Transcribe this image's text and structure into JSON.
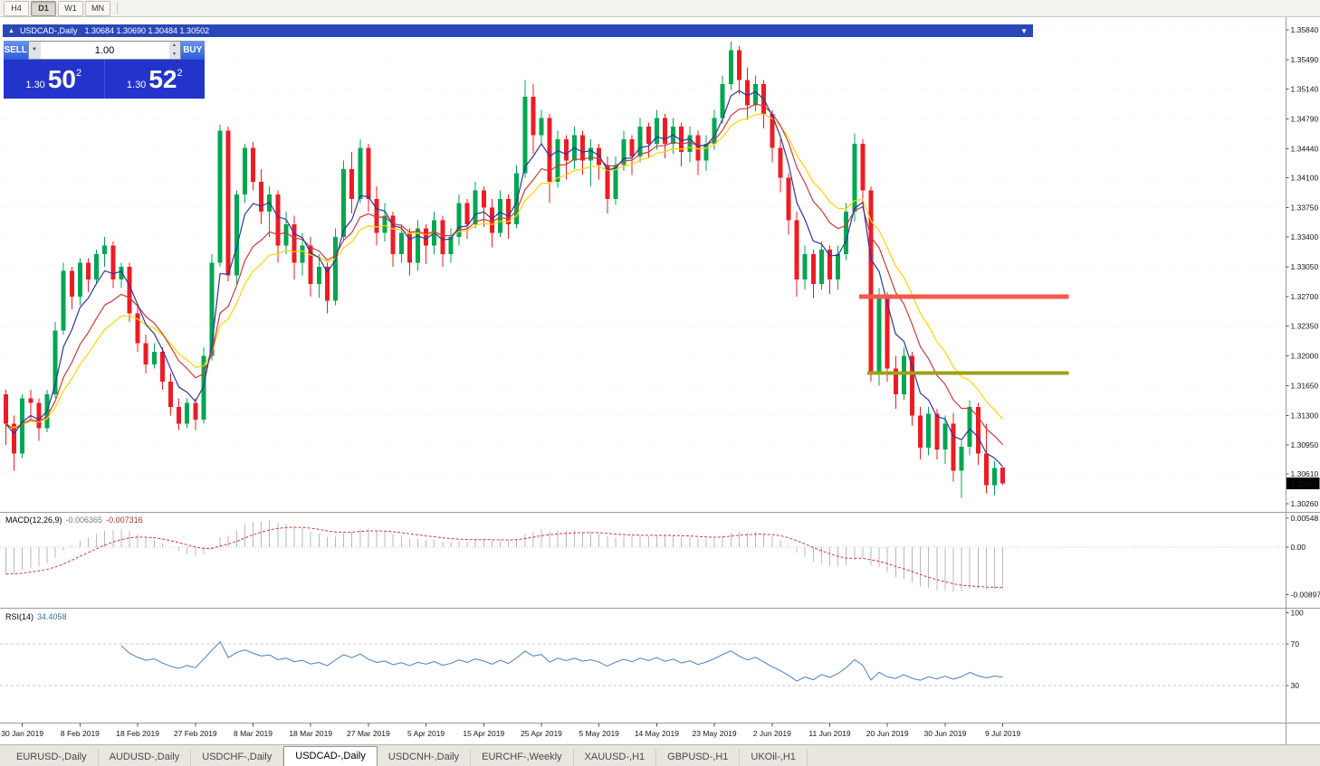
{
  "toolbar": {
    "timeframes": [
      {
        "label": "H4",
        "active": false
      },
      {
        "label": "D1",
        "active": true
      },
      {
        "label": "W1",
        "active": false
      },
      {
        "label": "MN",
        "active": false
      }
    ]
  },
  "chart_header": {
    "collapse_icon": "▲",
    "symbol": "USDCAD-,Daily",
    "ohlc": "1.30684 1.30690 1.30484 1.30502",
    "menu_icon": "▼"
  },
  "trade_widget": {
    "sell_label": "SELL",
    "buy_label": "BUY",
    "volume": "1.00",
    "dropdown_icon": "▼",
    "spin_up_icon": "▲",
    "spin_down_icon": "▼",
    "sell_price": {
      "small": "1.30",
      "big": "50",
      "sup": "2"
    },
    "buy_price": {
      "small": "1.30",
      "big": "52",
      "sup": "2"
    }
  },
  "indicators": {
    "macd": {
      "name": "MACD(12,26,9)",
      "value_main": "-0.006365",
      "value_signal": "-0.007316",
      "scale": {
        "top": "0.00548",
        "zero": "0.00",
        "bottom": "-0.00897"
      }
    },
    "rsi": {
      "name": "RSI(14)",
      "value": "34.4058",
      "scale": [
        "100",
        "70",
        "30"
      ]
    }
  },
  "price_scale": {
    "ticks": [
      "1.35840",
      "1.35490",
      "1.35140",
      "1.34790",
      "1.34440",
      "1.34100",
      "1.33750",
      "1.33400",
      "1.33050",
      "1.32700",
      "1.32350",
      "1.32000",
      "1.31650",
      "1.31300",
      "1.30950",
      "1.30610",
      "1.30260"
    ],
    "current": "1.30502"
  },
  "time_axis": [
    "30 Jan 2019",
    "8 Feb 2019",
    "18 Feb 2019",
    "27 Feb 2019",
    "8 Mar 2019",
    "18 Mar 2019",
    "27 Mar 2019",
    "5 Apr 2019",
    "15 Apr 2019",
    "25 Apr 2019",
    "5 May 2019",
    "14 May 2019",
    "23 May 2019",
    "2 Jun 2019",
    "11 Jun 2019",
    "20 Jun 2019",
    "30 Jun 2019",
    "9 Jul 2019"
  ],
  "tabs": [
    {
      "label": "EURUSD-,Daily",
      "active": false
    },
    {
      "label": "AUDUSD-,Daily",
      "active": false
    },
    {
      "label": "USDCHF-,Daily",
      "active": false
    },
    {
      "label": "USDCAD-,Daily",
      "active": true
    },
    {
      "label": "USDCNH-,Daily",
      "active": false
    },
    {
      "label": "EURCHF-,Weekly",
      "active": false
    },
    {
      "label": "XAUUSD-,H1",
      "active": false
    },
    {
      "label": "GBPUSD-,H1",
      "active": false
    },
    {
      "label": "UKOil-,H1",
      "active": false
    }
  ],
  "chart_data": {
    "type": "candlestick",
    "title": "USDCAD-,Daily",
    "symbol": "USDCAD",
    "timeframe": "Daily",
    "price_range": {
      "top": 1.3584,
      "bottom": 1.3026
    },
    "x_axis": {
      "first_label_index": 2,
      "label_step": 7
    },
    "colors": {
      "up": "#00A651",
      "down": "#ED1C24",
      "up_border": "#00814000",
      "down_border": "#c0101500"
    },
    "candles": [
      [
        1.3155,
        1.316,
        1.3095,
        1.312
      ],
      [
        1.312,
        1.313,
        1.3065,
        1.3085
      ],
      [
        1.3085,
        1.3155,
        1.308,
        1.315
      ],
      [
        1.315,
        1.316,
        1.3125,
        1.3145
      ],
      [
        1.3145,
        1.315,
        1.31,
        1.3115
      ],
      [
        1.3115,
        1.316,
        1.311,
        1.3155
      ],
      [
        1.3155,
        1.324,
        1.315,
        1.323
      ],
      [
        1.323,
        1.331,
        1.3225,
        1.33
      ],
      [
        1.33,
        1.3305,
        1.3255,
        1.327
      ],
      [
        1.327,
        1.3315,
        1.326,
        1.331
      ],
      [
        1.331,
        1.3315,
        1.3275,
        1.329
      ],
      [
        1.329,
        1.3325,
        1.3285,
        1.332
      ],
      [
        1.332,
        1.334,
        1.3305,
        1.333
      ],
      [
        1.333,
        1.3335,
        1.328,
        1.329
      ],
      [
        1.329,
        1.331,
        1.328,
        1.3305
      ],
      [
        1.3305,
        1.331,
        1.324,
        1.325
      ],
      [
        1.325,
        1.326,
        1.3205,
        1.3215
      ],
      [
        1.3215,
        1.3225,
        1.318,
        1.319
      ],
      [
        1.319,
        1.3215,
        1.3185,
        1.3205
      ],
      [
        1.3205,
        1.321,
        1.316,
        1.317
      ],
      [
        1.317,
        1.318,
        1.313,
        1.314
      ],
      [
        1.314,
        1.315,
        1.3113,
        1.312
      ],
      [
        1.312,
        1.315,
        1.3115,
        1.3145
      ],
      [
        1.3145,
        1.315,
        1.3113,
        1.3125
      ],
      [
        1.3125,
        1.321,
        1.312,
        1.32
      ],
      [
        1.32,
        1.332,
        1.3195,
        1.331
      ],
      [
        1.331,
        1.3472,
        1.3305,
        1.3465
      ],
      [
        1.3465,
        1.347,
        1.3288,
        1.3295
      ],
      [
        1.3295,
        1.3395,
        1.3285,
        1.339
      ],
      [
        1.339,
        1.345,
        1.338,
        1.3445
      ],
      [
        1.3445,
        1.3452,
        1.3395,
        1.3405
      ],
      [
        1.3405,
        1.342,
        1.3355,
        1.337
      ],
      [
        1.337,
        1.34,
        1.334,
        1.339
      ],
      [
        1.339,
        1.3395,
        1.331,
        1.333
      ],
      [
        1.333,
        1.337,
        1.332,
        1.3355
      ],
      [
        1.3355,
        1.3365,
        1.329,
        1.331
      ],
      [
        1.331,
        1.3345,
        1.3295,
        1.333
      ],
      [
        1.333,
        1.334,
        1.327,
        1.3285
      ],
      [
        1.3285,
        1.332,
        1.3268,
        1.3305
      ],
      [
        1.3305,
        1.331,
        1.325,
        1.3265
      ],
      [
        1.3265,
        1.335,
        1.326,
        1.334
      ],
      [
        1.334,
        1.343,
        1.3335,
        1.342
      ],
      [
        1.342,
        1.344,
        1.3368,
        1.3385
      ],
      [
        1.3385,
        1.3455,
        1.338,
        1.3445
      ],
      [
        1.3445,
        1.345,
        1.337,
        1.3385
      ],
      [
        1.3385,
        1.34,
        1.333,
        1.3345
      ],
      [
        1.3345,
        1.338,
        1.3335,
        1.3365
      ],
      [
        1.3365,
        1.337,
        1.3305,
        1.332
      ],
      [
        1.332,
        1.3355,
        1.331,
        1.3345
      ],
      [
        1.3345,
        1.335,
        1.3295,
        1.331
      ],
      [
        1.331,
        1.336,
        1.33,
        1.335
      ],
      [
        1.335,
        1.3355,
        1.3308,
        1.333
      ],
      [
        1.333,
        1.337,
        1.332,
        1.336
      ],
      [
        1.336,
        1.3365,
        1.3305,
        1.332
      ],
      [
        1.332,
        1.335,
        1.331,
        1.334
      ],
      [
        1.334,
        1.339,
        1.333,
        1.338
      ],
      [
        1.338,
        1.3385,
        1.3338,
        1.3355
      ],
      [
        1.3355,
        1.3405,
        1.335,
        1.3395
      ],
      [
        1.3395,
        1.34,
        1.3352,
        1.3375
      ],
      [
        1.3375,
        1.3385,
        1.3328,
        1.3345
      ],
      [
        1.3345,
        1.3395,
        1.334,
        1.3385
      ],
      [
        1.3385,
        1.339,
        1.3338,
        1.3355
      ],
      [
        1.3355,
        1.3425,
        1.335,
        1.3415
      ],
      [
        1.3415,
        1.3525,
        1.341,
        1.3505
      ],
      [
        1.3505,
        1.352,
        1.3438,
        1.346
      ],
      [
        1.346,
        1.349,
        1.3448,
        1.348
      ],
      [
        1.348,
        1.3485,
        1.338,
        1.3405
      ],
      [
        1.3405,
        1.3465,
        1.3398,
        1.3455
      ],
      [
        1.3455,
        1.346,
        1.3408,
        1.343
      ],
      [
        1.343,
        1.347,
        1.342,
        1.346
      ],
      [
        1.346,
        1.3465,
        1.3413,
        1.343
      ],
      [
        1.343,
        1.3455,
        1.34,
        1.3445
      ],
      [
        1.3445,
        1.345,
        1.3408,
        1.3425
      ],
      [
        1.3425,
        1.3435,
        1.3368,
        1.3385
      ],
      [
        1.3385,
        1.3435,
        1.3378,
        1.3425
      ],
      [
        1.3425,
        1.3465,
        1.3418,
        1.3455
      ],
      [
        1.3455,
        1.346,
        1.3413,
        1.3435
      ],
      [
        1.3435,
        1.348,
        1.3428,
        1.347
      ],
      [
        1.347,
        1.3475,
        1.3433,
        1.345
      ],
      [
        1.345,
        1.349,
        1.3443,
        1.348
      ],
      [
        1.348,
        1.3485,
        1.3433,
        1.345
      ],
      [
        1.345,
        1.348,
        1.3438,
        1.347
      ],
      [
        1.347,
        1.3475,
        1.3423,
        1.344
      ],
      [
        1.344,
        1.347,
        1.3428,
        1.346
      ],
      [
        1.346,
        1.3465,
        1.3413,
        1.343
      ],
      [
        1.343,
        1.346,
        1.3418,
        1.345
      ],
      [
        1.345,
        1.349,
        1.3443,
        1.348
      ],
      [
        1.348,
        1.353,
        1.3473,
        1.352
      ],
      [
        1.352,
        1.357,
        1.3513,
        1.356
      ],
      [
        1.356,
        1.3565,
        1.3508,
        1.3525
      ],
      [
        1.3525,
        1.354,
        1.3478,
        1.3495
      ],
      [
        1.3495,
        1.353,
        1.3488,
        1.352
      ],
      [
        1.352,
        1.3525,
        1.3468,
        1.3485
      ],
      [
        1.3485,
        1.349,
        1.3428,
        1.3445
      ],
      [
        1.3445,
        1.3455,
        1.3393,
        1.341
      ],
      [
        1.341,
        1.3415,
        1.3343,
        1.336
      ],
      [
        1.336,
        1.337,
        1.327,
        1.329
      ],
      [
        1.329,
        1.333,
        1.3278,
        1.332
      ],
      [
        1.332,
        1.3325,
        1.3268,
        1.3285
      ],
      [
        1.3285,
        1.3335,
        1.3278,
        1.3325
      ],
      [
        1.3325,
        1.333,
        1.3273,
        1.329
      ],
      [
        1.329,
        1.333,
        1.3278,
        1.332
      ],
      [
        1.332,
        1.338,
        1.3313,
        1.337
      ],
      [
        1.337,
        1.3462,
        1.3358,
        1.345
      ],
      [
        1.345,
        1.3455,
        1.3378,
        1.3395
      ],
      [
        1.3395,
        1.34,
        1.317,
        1.318
      ],
      [
        1.318,
        1.328,
        1.3165,
        1.327
      ],
      [
        1.327,
        1.3275,
        1.317,
        1.3185
      ],
      [
        1.3185,
        1.32,
        1.3138,
        1.3155
      ],
      [
        1.3155,
        1.321,
        1.3148,
        1.32
      ],
      [
        1.32,
        1.3205,
        1.3118,
        1.313
      ],
      [
        1.313,
        1.314,
        1.3078,
        1.3092
      ],
      [
        1.3092,
        1.314,
        1.3083,
        1.3132
      ],
      [
        1.3132,
        1.3138,
        1.3078,
        1.309
      ],
      [
        1.309,
        1.313,
        1.3073,
        1.312
      ],
      [
        1.312,
        1.3133,
        1.3052,
        1.3065
      ],
      [
        1.3065,
        1.31,
        1.3033,
        1.3093
      ],
      [
        1.3093,
        1.3148,
        1.3083,
        1.314
      ],
      [
        1.314,
        1.3145,
        1.3072,
        1.3085
      ],
      [
        1.3085,
        1.312,
        1.3038,
        1.3048
      ],
      [
        1.3048,
        1.3076,
        1.3036,
        1.3068
      ],
      [
        1.30684,
        1.3069,
        1.30484,
        1.30502
      ]
    ],
    "moving_averages": [
      {
        "period": 5,
        "color": "#2f3699",
        "name": "ma-fast-blue"
      },
      {
        "period": 10,
        "color": "#cc3a3a",
        "name": "ma-mid-red"
      },
      {
        "period": 15,
        "color": "#ffd400",
        "name": "ma-slow-yellow"
      }
    ],
    "hlines": [
      {
        "name": "resistance-line-upper",
        "price": 1.327,
        "start_index": 104,
        "end_index": 129,
        "color": "#fa584e",
        "width": 5
      },
      {
        "name": "support-line-lower",
        "price": 1.318,
        "start_index": 105,
        "end_index": 129,
        "color": "#9ea018",
        "width": 4
      }
    ],
    "macd": {
      "fast": 12,
      "slow": 26,
      "signal": 9,
      "seed_offset": 0.0055
    },
    "rsi": {
      "period": 14,
      "levels": [
        70,
        30
      ]
    }
  }
}
